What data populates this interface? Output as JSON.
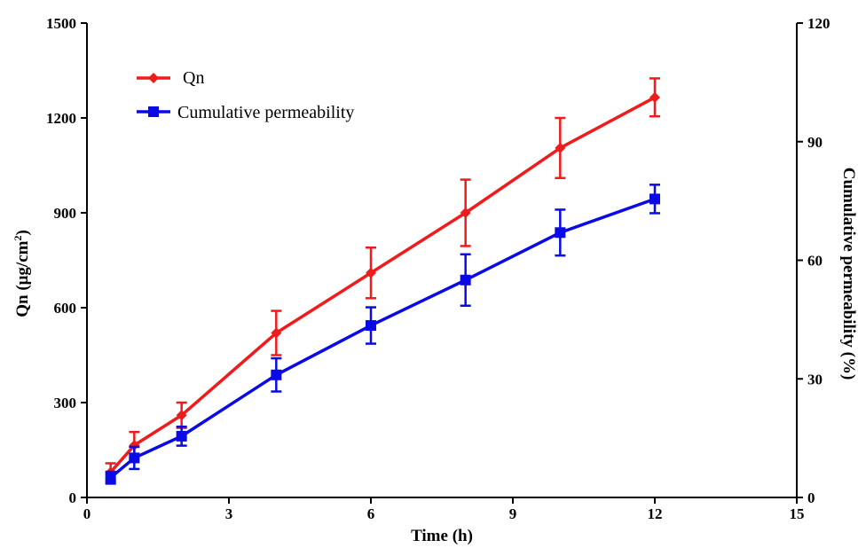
{
  "chart_data": {
    "type": "line",
    "title": "",
    "xlabel": "Time (h)",
    "ylabel_prefix": "Qn (μg/cm",
    "ylabel_sup": "2",
    "ylabel_suffix": ")",
    "y2label": "Cumulative permeability (%)",
    "xlim": [
      0,
      15
    ],
    "ylim": [
      0,
      1500
    ],
    "y2lim": [
      0,
      120
    ],
    "xticks": [
      0,
      3,
      6,
      9,
      12,
      15
    ],
    "yticks": [
      0,
      300,
      600,
      900,
      1200,
      1500
    ],
    "y2ticks": [
      0,
      30,
      60,
      90,
      120
    ],
    "grid": false,
    "legend_position": "top-left",
    "series": [
      {
        "name": "Qn",
        "axis": "left",
        "color": "#ee1c1c",
        "marker": "diamond",
        "x": [
          0.5,
          1,
          2,
          4,
          6,
          8,
          10,
          12
        ],
        "y": [
          80,
          165,
          260,
          520,
          710,
          900,
          1105,
          1265
        ],
        "err": [
          28,
          42,
          40,
          70,
          80,
          105,
          95,
          60
        ]
      },
      {
        "name": "Cumulative permeability",
        "axis": "right",
        "color": "#0a0ae6",
        "marker": "square",
        "x": [
          0.5,
          1,
          2,
          4,
          6,
          8,
          10,
          12
        ],
        "y": [
          5,
          10,
          15.5,
          31,
          43.5,
          55,
          67,
          75.5
        ],
        "err": [
          1.5,
          2.8,
          2.4,
          4.2,
          4.6,
          6.5,
          5.8,
          3.6
        ]
      }
    ]
  }
}
